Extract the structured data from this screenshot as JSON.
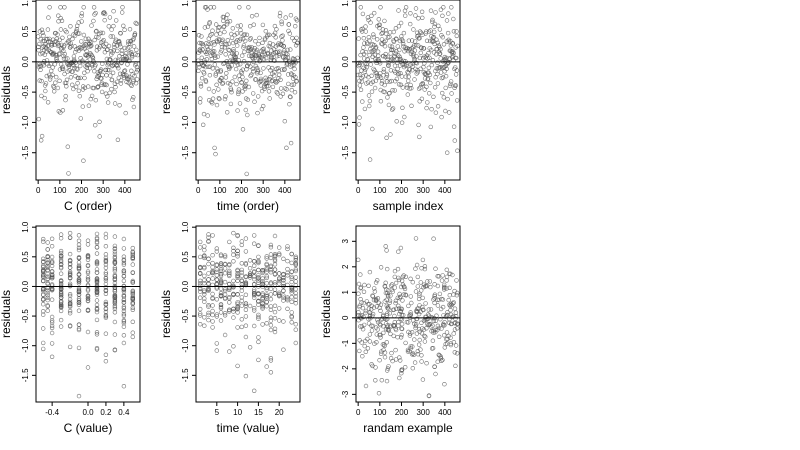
{
  "chart_data": [
    {
      "type": "scatter",
      "xlabel": "C (order)",
      "ylabel": "residuals",
      "xlim": [
        -10,
        470
      ],
      "ylim": [
        -1.95,
        1.02
      ],
      "xticks": [
        0,
        100,
        200,
        300,
        400
      ],
      "yticks": [
        1.0,
        0.5,
        0.0,
        -0.5,
        -1.0,
        -1.5
      ],
      "ytick_labels": [
        "1.0",
        "0.5",
        "0.0",
        "-0.5",
        "-1.0",
        "-1.5"
      ],
      "hline": 0,
      "n_points": 460,
      "pattern": "order_c",
      "y_range": [
        -1.85,
        0.9
      ]
    },
    {
      "type": "scatter",
      "xlabel": "time (order)",
      "ylabel": "residuals",
      "xlim": [
        -10,
        470
      ],
      "ylim": [
        -1.95,
        1.02
      ],
      "xticks": [
        0,
        100,
        200,
        300,
        400
      ],
      "yticks": [
        1.0,
        0.5,
        0.0,
        -0.5,
        -1.0,
        -1.5
      ],
      "ytick_labels": [
        "1.0",
        "0.5",
        "0.0",
        "-0.5",
        "-1.0",
        "-1.5"
      ],
      "hline": 0,
      "n_points": 460,
      "pattern": "order_t",
      "y_range": [
        -1.85,
        0.9
      ]
    },
    {
      "type": "scatter",
      "xlabel": "sample index",
      "ylabel": "residuals",
      "xlim": [
        -10,
        470
      ],
      "ylim": [
        -1.95,
        1.02
      ],
      "xticks": [
        0,
        100,
        200,
        300,
        400
      ],
      "yticks": [
        1.0,
        0.5,
        0.0,
        -0.5,
        -1.0,
        -1.5
      ],
      "ytick_labels": [
        "1.0",
        "0.5",
        "0.0",
        "-0.5",
        "-1.0",
        "-1.5"
      ],
      "hline": 0,
      "n_points": 460,
      "pattern": "index",
      "y_range": [
        -1.85,
        0.9
      ]
    },
    {
      "type": "scatter",
      "xlabel": "C (value)",
      "ylabel": "residuals",
      "xlim": [
        -0.58,
        0.58
      ],
      "ylim": [
        -1.95,
        1.02
      ],
      "xticks": [
        -0.4,
        0.0,
        0.2,
        0.4
      ],
      "xtick_labels": [
        "-0.4",
        "0.0",
        "0.2",
        "0.4"
      ],
      "yticks": [
        1.0,
        0.5,
        0.0,
        -0.5,
        -1.0,
        -1.5
      ],
      "ytick_labels": [
        "1.0",
        "0.5",
        "0.0",
        "-0.5",
        "-1.0",
        "-1.5"
      ],
      "hline": 0,
      "n_points": 460,
      "pattern": "cvalue",
      "x_levels": [
        -0.5,
        -0.45,
        -0.4,
        -0.3,
        -0.2,
        -0.1,
        0.0,
        0.1,
        0.2,
        0.3,
        0.4,
        0.5
      ],
      "y_range": [
        -1.85,
        0.9
      ]
    },
    {
      "type": "scatter",
      "xlabel": "time (value)",
      "ylabel": "residuals",
      "xlim": [
        0,
        25
      ],
      "ylim": [
        -1.95,
        1.02
      ],
      "xticks": [
        5,
        10,
        15,
        20
      ],
      "yticks": [
        1.0,
        0.5,
        0.0,
        -0.5,
        -1.0,
        -1.5
      ],
      "ytick_labels": [
        "1.0",
        "0.5",
        "0.0",
        "-0.5",
        "-1.0",
        "-1.5"
      ],
      "hline": 0,
      "n_points": 460,
      "pattern": "tvalue",
      "x_levels_range": [
        1,
        24
      ],
      "y_range": [
        -1.85,
        0.9
      ]
    },
    {
      "type": "scatter",
      "xlabel": "randam example",
      "ylabel": "residuals",
      "xlim": [
        -10,
        470
      ],
      "ylim": [
        -3.3,
        3.6
      ],
      "xticks": [
        0,
        100,
        200,
        300,
        400
      ],
      "yticks": [
        3,
        2,
        1,
        0,
        -1,
        -2,
        -3
      ],
      "ytick_labels": [
        "3",
        "2",
        "1",
        "0",
        "-1",
        "-2",
        "-3"
      ],
      "hline": 0,
      "n_points": 460,
      "pattern": "random",
      "y_range": [
        -3.2,
        3.4
      ]
    }
  ],
  "style": {
    "point_color": "#555555",
    "axis_color": "#000000",
    "background": "#ffffff"
  }
}
